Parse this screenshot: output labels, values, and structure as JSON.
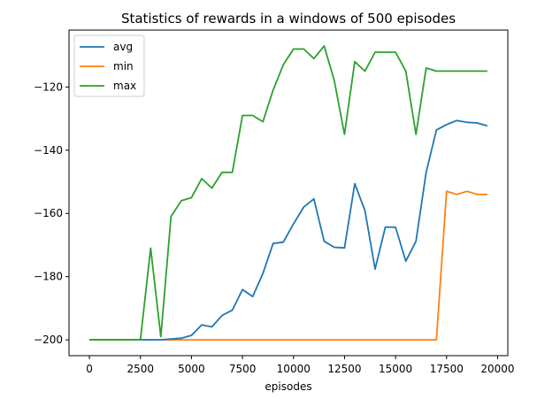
{
  "chart_data": {
    "type": "line",
    "title": "Statistics of rewards in a windows of 500 episodes",
    "xlabel": "episodes",
    "ylabel": "",
    "xlim": [
      -1000,
      20500
    ],
    "ylim": [
      -205,
      -102
    ],
    "xticks": [
      0,
      2500,
      5000,
      7500,
      10000,
      12500,
      15000,
      17500,
      20000
    ],
    "yticks": [
      -200,
      -180,
      -160,
      -140,
      -120
    ],
    "grid": false,
    "legend_position": "top-left",
    "x": [
      0,
      500,
      1000,
      1500,
      2000,
      2500,
      3000,
      3500,
      4000,
      4500,
      5000,
      5500,
      6000,
      6500,
      7000,
      7500,
      8000,
      8500,
      9000,
      9500,
      10000,
      10500,
      11000,
      11500,
      12000,
      12500,
      13000,
      13500,
      14000,
      14500,
      15000,
      15500,
      16000,
      16500,
      17000,
      17500,
      18000,
      18500,
      19000,
      19500
    ],
    "series": [
      {
        "name": "avg",
        "color": "#1f77b4",
        "values": [
          -200,
          -200,
          -200,
          -200,
          -200,
          -200,
          -200,
          -200,
          -199.7,
          -199.5,
          -198.6,
          -195.3,
          -195.9,
          -192.3,
          -190.6,
          -184.1,
          -186.3,
          -179.0,
          -169.5,
          -169.1,
          -163.3,
          -158.0,
          -155.4,
          -168.8,
          -170.7,
          -170.9,
          -150.6,
          -159.1,
          -177.6,
          -164.3,
          -164.4,
          -175.1,
          -168.8,
          -147.0,
          -133.6,
          -131.9,
          -130.6,
          -131.2,
          -131.4,
          -132.3
        ]
      },
      {
        "name": "min",
        "color": "#ff7f0e",
        "values": [
          -200,
          -200,
          -200,
          -200,
          -200,
          -200,
          -200,
          -200,
          -200,
          -200,
          -200,
          -200,
          -200,
          -200,
          -200,
          -200,
          -200,
          -200,
          -200,
          -200,
          -200,
          -200,
          -200,
          -200,
          -200,
          -200,
          -200,
          -200,
          -200,
          -200,
          -200,
          -200,
          -200,
          -200,
          -200,
          -153,
          -154,
          -153,
          -154,
          -154
        ]
      },
      {
        "name": "max",
        "color": "#2ca02c",
        "values": [
          -200,
          -200,
          -200,
          -200,
          -200,
          -200,
          -171,
          -199,
          -161,
          -156,
          -155,
          -149,
          -152,
          -147,
          -147,
          -129,
          -129,
          -131,
          -121,
          -113,
          -108,
          -108,
          -111,
          -107,
          -118,
          -135,
          -112,
          -115,
          -109,
          -109,
          -109,
          -115,
          -135,
          -114,
          -115,
          -115,
          -115,
          -115,
          -115,
          -115
        ]
      }
    ]
  }
}
